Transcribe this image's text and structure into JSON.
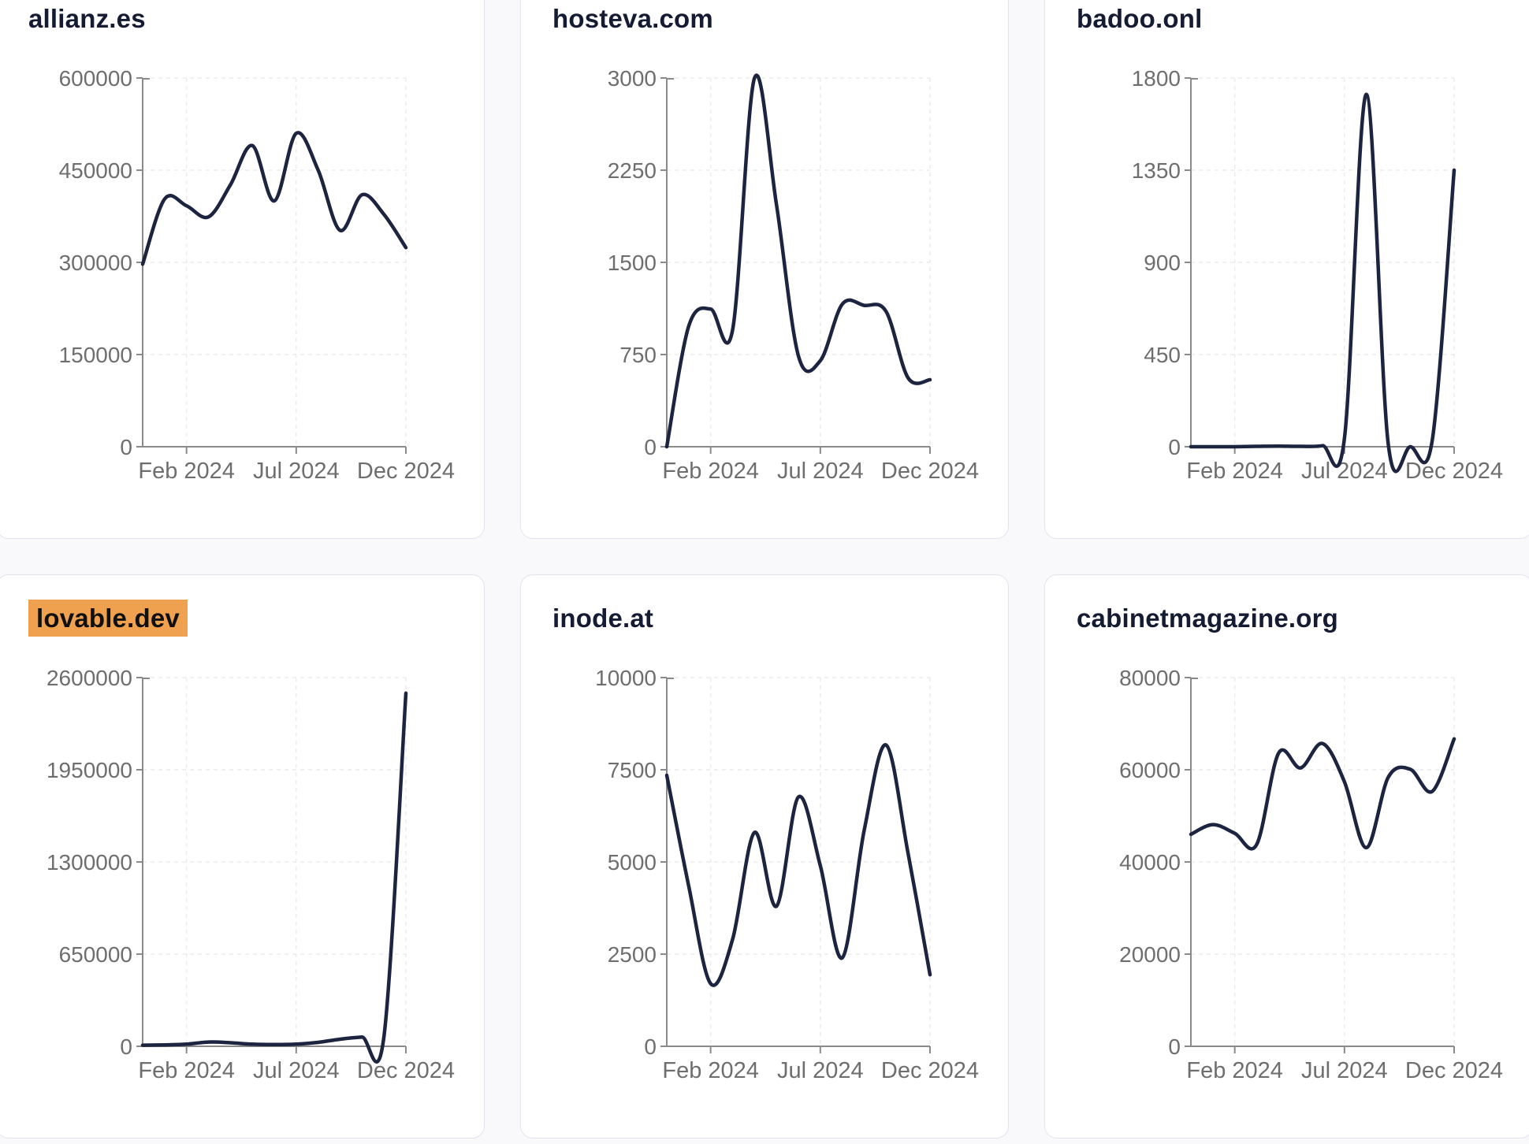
{
  "style": {
    "line_color": "#1c2440",
    "axis_color": "#8a8a8a",
    "grid_color": "#ececec",
    "tick_label_color": "#6e6e6e",
    "title_color": "#141b33",
    "highlight_color": "#f0a14f",
    "card_background": "#ffffff",
    "card_border_color": "#e1e4ee",
    "page_background": "#f9f9fb"
  },
  "chart_data": [
    {
      "type": "line",
      "title": "allianz.es",
      "title_highlighted": false,
      "x": [
        "Dec 2023",
        "Jan 2024",
        "Feb 2024",
        "Mar 2024",
        "Apr 2024",
        "May 2024",
        "Jun 2024",
        "Jul 2024",
        "Aug 2024",
        "Sep 2024",
        "Oct 2024",
        "Nov 2024",
        "Dec 2024"
      ],
      "values": [
        297000,
        403000,
        392000,
        374000,
        426000,
        490000,
        400000,
        510000,
        450000,
        352000,
        410000,
        378000,
        324000
      ],
      "y_ticks": [
        0,
        150000,
        300000,
        450000,
        600000
      ],
      "ylim": [
        0,
        600000
      ],
      "x_tick_labels": [
        "Feb 2024",
        "Jul 2024",
        "Dec 2024"
      ],
      "x_tick_indexes": [
        2,
        7,
        12
      ],
      "grid": "dashed"
    },
    {
      "type": "line",
      "title": "hosteva.com",
      "title_highlighted": false,
      "x": [
        "Dec 2023",
        "Jan 2024",
        "Feb 2024",
        "Mar 2024",
        "Apr 2024",
        "May 2024",
        "Jun 2024",
        "Jul 2024",
        "Aug 2024",
        "Sep 2024",
        "Oct 2024",
        "Nov 2024",
        "Dec 2024"
      ],
      "values": [
        0,
        980,
        1120,
        950,
        3000,
        1970,
        740,
        700,
        1160,
        1150,
        1100,
        560,
        545
      ],
      "y_ticks": [
        0,
        750,
        1500,
        2250,
        3000
      ],
      "ylim": [
        0,
        3000
      ],
      "x_tick_labels": [
        "Feb 2024",
        "Jul 2024",
        "Dec 2024"
      ],
      "x_tick_indexes": [
        2,
        7,
        12
      ],
      "grid": "dashed"
    },
    {
      "type": "line",
      "title": "badoo.onl",
      "title_highlighted": false,
      "x": [
        "Dec 2023",
        "Jan 2024",
        "Feb 2024",
        "Mar 2024",
        "Apr 2024",
        "May 2024",
        "Jun 2024",
        "Jul 2024",
        "Aug 2024",
        "Sep 2024",
        "Oct 2024",
        "Nov 2024",
        "Dec 2024"
      ],
      "values": [
        0,
        0,
        0,
        2,
        3,
        2,
        5,
        40,
        1720,
        10,
        0,
        30,
        1350
      ],
      "y_ticks": [
        0,
        450,
        900,
        1350,
        1800
      ],
      "ylim": [
        0,
        1800
      ],
      "x_tick_labels": [
        "Feb 2024",
        "Jul 2024",
        "Dec 2024"
      ],
      "x_tick_indexes": [
        2,
        7,
        12
      ],
      "grid": "dashed"
    },
    {
      "type": "line",
      "title": "lovable.dev",
      "title_highlighted": true,
      "x": [
        "Dec 2023",
        "Jan 2024",
        "Feb 2024",
        "Mar 2024",
        "Apr 2024",
        "May 2024",
        "Jun 2024",
        "Jul 2024",
        "Aug 2024",
        "Sep 2024",
        "Oct 2024",
        "Nov 2024",
        "Dec 2024"
      ],
      "values": [
        8000,
        10000,
        15000,
        30000,
        25000,
        15000,
        12000,
        15000,
        28000,
        50000,
        65000,
        70000,
        2490000
      ],
      "y_ticks": [
        0,
        650000,
        1300000,
        1950000,
        2600000
      ],
      "ylim": [
        0,
        2600000
      ],
      "x_tick_labels": [
        "Feb 2024",
        "Jul 2024",
        "Dec 2024"
      ],
      "x_tick_indexes": [
        2,
        7,
        12
      ],
      "grid": "dashed"
    },
    {
      "type": "line",
      "title": "inode.at",
      "title_highlighted": false,
      "x": [
        "Dec 2023",
        "Jan 2024",
        "Feb 2024",
        "Mar 2024",
        "Apr 2024",
        "May 2024",
        "Jun 2024",
        "Jul 2024",
        "Aug 2024",
        "Sep 2024",
        "Oct 2024",
        "Nov 2024",
        "Dec 2024"
      ],
      "values": [
        7350,
        4350,
        1700,
        2900,
        5800,
        3800,
        6760,
        4900,
        2400,
        5860,
        8170,
        5230,
        1940
      ],
      "y_ticks": [
        0,
        2500,
        5000,
        7500,
        10000
      ],
      "ylim": [
        0,
        10000
      ],
      "x_tick_labels": [
        "Feb 2024",
        "Jul 2024",
        "Dec 2024"
      ],
      "x_tick_indexes": [
        2,
        7,
        12
      ],
      "grid": "dashed"
    },
    {
      "type": "line",
      "title": "cabinetmagazine.org",
      "title_highlighted": false,
      "x": [
        "Dec 2023",
        "Jan 2024",
        "Feb 2024",
        "Mar 2024",
        "Apr 2024",
        "May 2024",
        "Jun 2024",
        "Jul 2024",
        "Aug 2024",
        "Sep 2024",
        "Oct 2024",
        "Nov 2024",
        "Dec 2024"
      ],
      "values": [
        46000,
        48100,
        46200,
        43800,
        63600,
        60400,
        65700,
        57400,
        43100,
        58400,
        60100,
        55300,
        66700
      ],
      "y_ticks": [
        0,
        20000,
        40000,
        60000,
        80000
      ],
      "ylim": [
        0,
        80000
      ],
      "x_tick_labels": [
        "Feb 2024",
        "Jul 2024",
        "Dec 2024"
      ],
      "x_tick_indexes": [
        2,
        7,
        12
      ],
      "grid": "dashed"
    }
  ]
}
